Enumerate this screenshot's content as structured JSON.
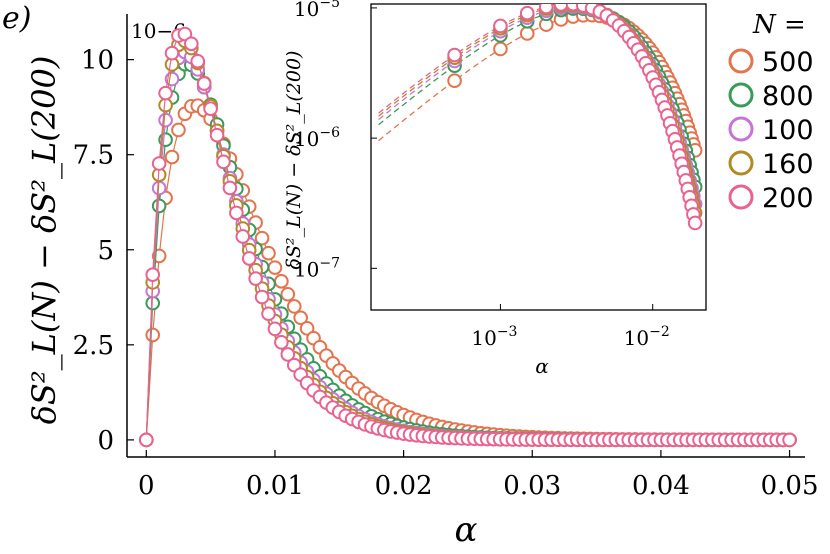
{
  "panel_label": "e)",
  "colors": {
    "n500": "#e2744f",
    "n800": "#3a9a59",
    "n100": "#c675d6",
    "n160": "#b08a25",
    "n200": "#e8638f"
  },
  "chart_data": [
    {
      "type": "scatter",
      "role": "main",
      "xlabel": "α",
      "ylabel": "δS²_L(N) − δS²_L(200)",
      "y_multiplier_label": "10−6",
      "xlim": [
        -0.0015,
        0.0512
      ],
      "ylim": [
        -0.45,
        11.2
      ],
      "xticks": [
        0,
        0.01,
        0.02,
        0.03,
        0.04,
        0.05
      ],
      "xtick_labels": [
        "0",
        "0.01",
        "0.02",
        "0.03",
        "0.04",
        "0.05"
      ],
      "yticks": [
        0,
        2.5,
        5,
        7.5,
        10
      ],
      "ytick_labels": [
        "0",
        "2.5",
        "5",
        "7.5",
        "10"
      ],
      "legend": {
        "title": "N =",
        "position": "right",
        "labels": [
          "500",
          "800",
          "100",
          "160",
          "200"
        ]
      },
      "curve_shape": "each series = A·(α/αp)·exp(1 − α/αp), units of 1e-6, sampled every 0.0005 from 0 to 0.05",
      "series": [
        {
          "name": "500",
          "color_key": "n500",
          "peak_alpha": 0.0038,
          "peak_value": 8.8
        },
        {
          "name": "800",
          "color_key": "n800",
          "peak_alpha": 0.0032,
          "peak_value": 9.9
        },
        {
          "name": "100",
          "color_key": "n100",
          "peak_alpha": 0.003,
          "peak_value": 10.2
        },
        {
          "name": "160",
          "color_key": "n160",
          "peak_alpha": 0.0029,
          "peak_value": 10.5
        },
        {
          "name": "200",
          "color_key": "n200",
          "peak_alpha": 0.0028,
          "peak_value": 10.7
        }
      ]
    },
    {
      "type": "scatter",
      "role": "inset",
      "scale": "log-log",
      "xlabel": "α",
      "ylabel": "δS²_L(N) − δS²_L(200)",
      "xlim_log10": [
        -3.85,
        -1.65
      ],
      "ylim_log10": [
        -7.32,
        -4.97
      ],
      "xticks": [
        "10−3",
        "10−2"
      ],
      "xtick_values": [
        0.001,
        0.01
      ],
      "yticks": [
        "10−7",
        "10−6",
        "10−5"
      ],
      "ytick_values": [
        1e-07,
        1e-06,
        1e-05
      ],
      "dashed_fit_lines": true,
      "series": [
        {
          "name": "500",
          "color_key": "n500"
        },
        {
          "name": "800",
          "color_key": "n800"
        },
        {
          "name": "100",
          "color_key": "n100"
        },
        {
          "name": "160",
          "color_key": "n160"
        },
        {
          "name": "200",
          "color_key": "n200"
        }
      ]
    }
  ]
}
